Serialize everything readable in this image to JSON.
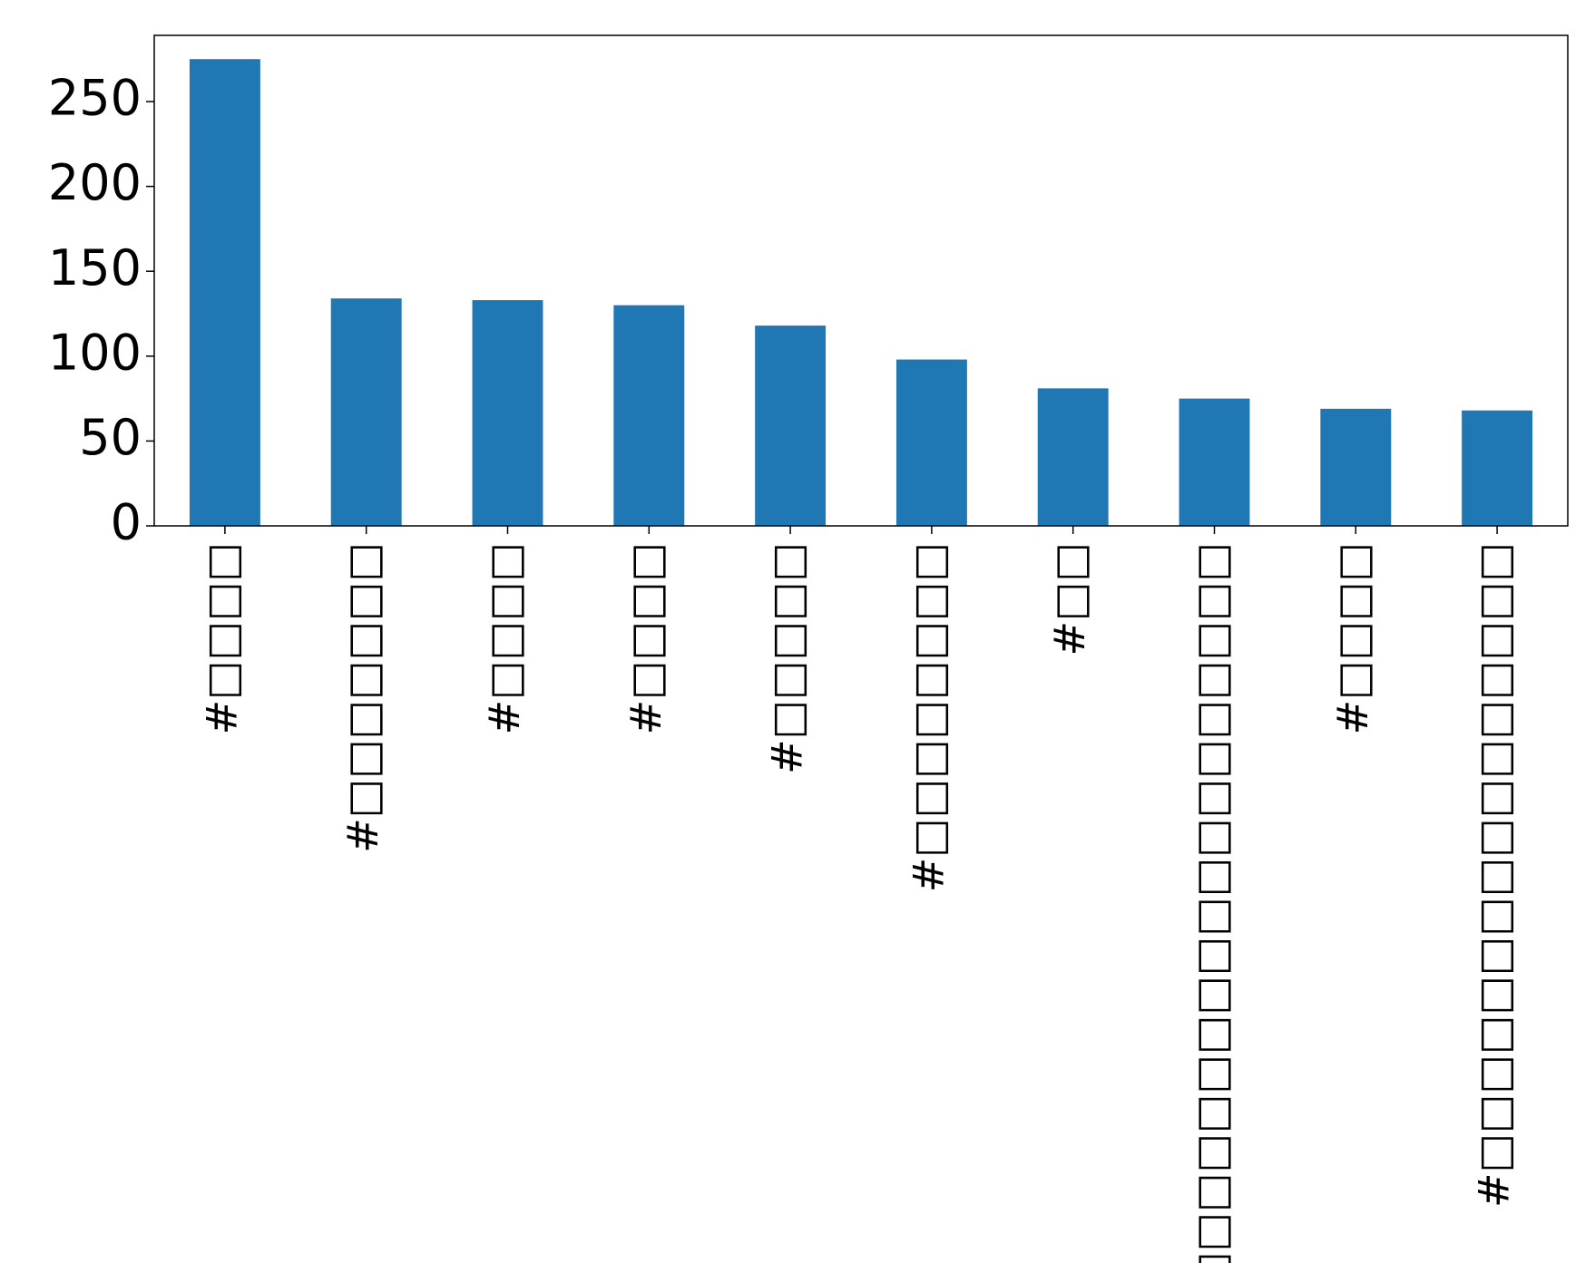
{
  "chart_data": {
    "type": "bar",
    "categories": [
      "#□□□□",
      "#□□□□□□□",
      "#□□□□",
      "#□□□□",
      "#□□□□□",
      "#□□□□□□□□",
      "#□□",
      "#□□□□□□□□□□□□□□□□□□□",
      "#□□□□",
      "#□□□□□□□□□□□□□□□□"
    ],
    "values": [
      275,
      134,
      133,
      130,
      118,
      98,
      81,
      75,
      69,
      68
    ],
    "color": "#1f77b4",
    "ylim": [
      0,
      289
    ],
    "yticks": [
      0,
      50,
      100,
      150,
      200,
      250
    ],
    "grid": false
  }
}
